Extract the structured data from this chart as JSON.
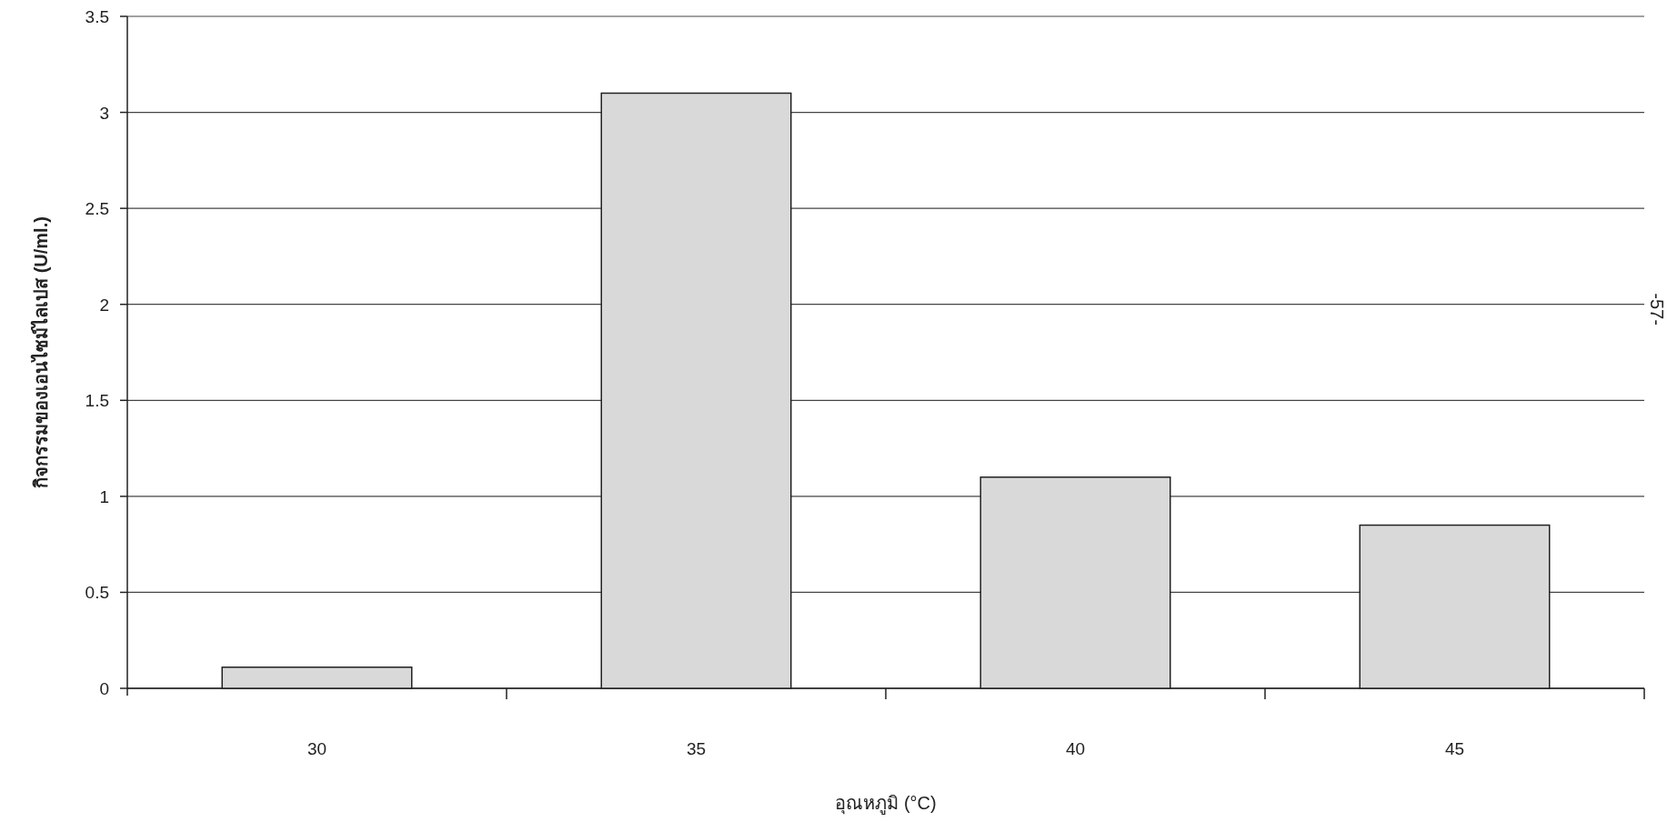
{
  "chart_data": {
    "type": "bar",
    "xlabel": "อุณหภูมิ (°C)",
    "ylabel": "กิจกรรมของเอนไซม์ไลเปส (U/ml.)",
    "categories": [
      "30",
      "35",
      "40",
      "45"
    ],
    "values": [
      0.11,
      3.1,
      1.1,
      0.85
    ],
    "color": "#d9d9d9",
    "ylim": [
      0,
      3.5
    ],
    "yticks": [
      0,
      0.5,
      1,
      1.5,
      2,
      2.5,
      3,
      3.5
    ],
    "grid": "y",
    "annotations": [
      "-57-"
    ]
  }
}
